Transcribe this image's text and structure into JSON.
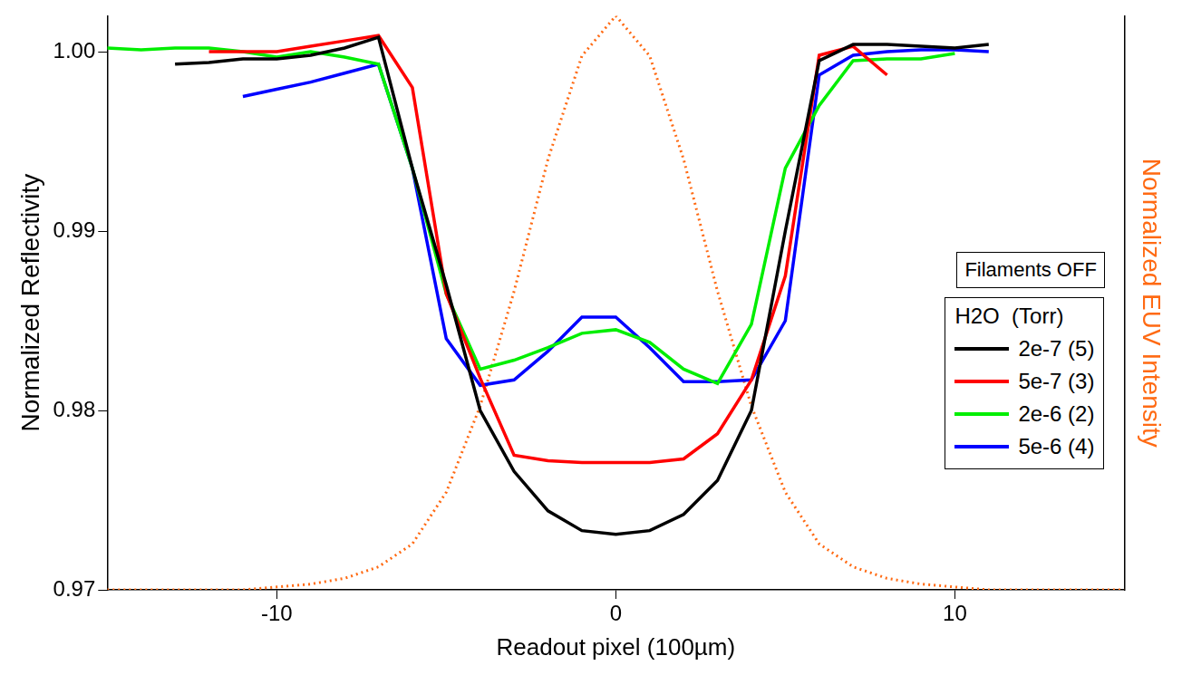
{
  "chart_data": {
    "type": "line",
    "x_label": "Readout pixel (100µm)",
    "y_label": "Normalized Reflectivity",
    "y2_label": "Normalized EUV Intensity",
    "annotations": [
      "Filaments OFF"
    ],
    "legend_title": "H2O  (Torr)",
    "legend": "right",
    "grid": false,
    "x": [
      -15,
      -14,
      -13,
      -12,
      -11,
      -10,
      -9,
      -8,
      -7,
      -6,
      -5,
      -4,
      -3,
      -2,
      -1,
      0,
      1,
      2,
      3,
      4,
      5,
      6,
      7,
      8,
      9,
      10,
      11,
      12,
      13,
      14,
      15
    ],
    "xlim": [
      -15,
      15
    ],
    "xticks": [
      -10,
      0,
      10
    ],
    "ylim": [
      0.97,
      1.002
    ],
    "yticks": [
      0.97,
      0.98,
      0.99,
      {
        "value": 1,
        "label": "1.00"
      }
    ],
    "y2lim": [
      0,
      1
    ],
    "series": [
      {
        "name": "2e-7 (5)",
        "color": "#000000",
        "line_style": "solid",
        "values": [
          null,
          null,
          0.9993,
          0.9994,
          0.9996,
          0.9996,
          0.9998,
          1.0002,
          1.0008,
          0.9935,
          0.987,
          0.98,
          0.9766,
          0.9744,
          0.9733,
          0.9731,
          0.9733,
          0.9742,
          0.9761,
          0.98,
          0.99,
          0.9995,
          1.0004,
          1.0004,
          1.0003,
          1.0002,
          1.0004,
          null,
          null,
          null,
          null
        ]
      },
      {
        "name": "5e-7 (3)",
        "color": "#ff0000",
        "line_style": "solid",
        "values": [
          null,
          null,
          null,
          1.0,
          1.0,
          1.0,
          1.0003,
          1.0006,
          1.0009,
          0.998,
          0.9865,
          0.9818,
          0.9775,
          0.9772,
          0.9771,
          0.9771,
          0.9771,
          0.9773,
          0.9787,
          0.9817,
          0.9875,
          0.9998,
          1.0003,
          0.9987,
          null,
          null,
          null,
          null,
          null,
          null,
          null
        ]
      },
      {
        "name": "2e-6 (2)",
        "color": "#00ee00",
        "line_style": "solid",
        "values": [
          1.0002,
          1.0001,
          1.0002,
          1.0002,
          1.0,
          0.9997,
          1.0,
          0.9997,
          0.9993,
          0.9935,
          0.9865,
          0.9823,
          0.9828,
          0.9835,
          0.9843,
          0.9845,
          0.9838,
          0.9823,
          0.9815,
          0.9848,
          0.9935,
          0.997,
          0.9995,
          0.9996,
          0.9996,
          0.9999,
          null,
          null,
          null,
          null,
          null
        ]
      },
      {
        "name": "5e-6 (4)",
        "color": "#0000ff",
        "line_style": "solid",
        "values": [
          null,
          null,
          null,
          null,
          0.9975,
          0.9979,
          0.9983,
          0.9988,
          0.9993,
          0.9935,
          0.984,
          0.9814,
          0.9817,
          0.9833,
          0.9852,
          0.9852,
          0.9835,
          0.9816,
          0.9816,
          0.9817,
          0.985,
          0.9987,
          0.9998,
          1.0,
          1.0001,
          1.0001,
          1.0,
          null,
          null,
          null,
          null
        ]
      },
      {
        "color": "#ff6a13",
        "line_style": "dotted",
        "axis": "y2",
        "values": [
          0,
          0,
          0,
          0,
          0,
          0.005,
          0.01,
          0.02,
          0.04,
          0.08,
          0.17,
          0.32,
          0.52,
          0.75,
          0.93,
          1.0,
          0.93,
          0.75,
          0.52,
          0.32,
          0.17,
          0.08,
          0.04,
          0.02,
          0.01,
          0.005,
          0,
          0,
          0,
          0,
          0
        ]
      }
    ]
  }
}
